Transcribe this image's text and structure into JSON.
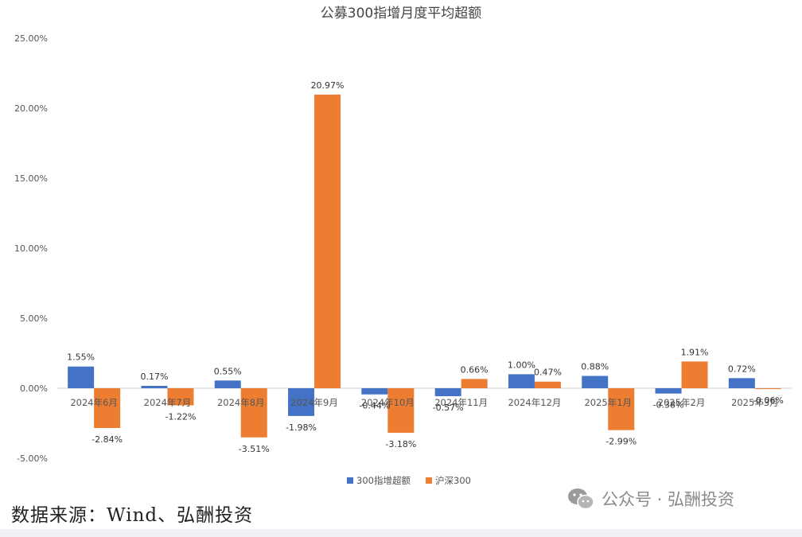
{
  "chart_data": {
    "type": "bar",
    "title": "公募300指增月度平均超额",
    "categories": [
      "2024年6月",
      "2024年7月",
      "2024年8月",
      "2024年9月",
      "2024年10月",
      "2024年11月",
      "2024年12月",
      "2025年1月",
      "2025年2月",
      "2025年3月"
    ],
    "series": [
      {
        "name": "300指增超额",
        "color": "#4472c4",
        "values": [
          1.55,
          0.17,
          0.55,
          -1.98,
          -0.44,
          -0.57,
          1.0,
          0.88,
          -0.38,
          0.72
        ],
        "labels": [
          "1.55%",
          "0.17%",
          "0.55%",
          "-1.98%",
          "-0.44%",
          "-0.57%",
          "1.00%",
          "0.88%",
          "-0.38%",
          "0.72%"
        ]
      },
      {
        "name": "沪深300",
        "color": "#ed7d31",
        "values": [
          -2.84,
          -1.22,
          -3.51,
          20.97,
          -3.18,
          0.66,
          0.47,
          -2.99,
          1.91,
          -0.06
        ],
        "labels": [
          "-2.84%",
          "-1.22%",
          "-3.51%",
          "20.97%",
          "-3.18%",
          "0.66%",
          "0.47%",
          "-2.99%",
          "1.91%",
          "-0.06%"
        ]
      }
    ],
    "ylim": [
      -5,
      25
    ],
    "yticks": [
      25,
      20,
      15,
      10,
      5,
      0,
      -5
    ],
    "ytick_labels": [
      "25.00%",
      "20.00%",
      "15.00%",
      "10.00%",
      "5.00%",
      "0.00%",
      "-5.00%"
    ],
    "grid": false,
    "legend_position": "bottom"
  },
  "footer": {
    "source": "数据来源：Wind、弘酬投资",
    "watermark": "公众号 · 弘酬投资",
    "watermark_icon": "wechat-icon"
  }
}
